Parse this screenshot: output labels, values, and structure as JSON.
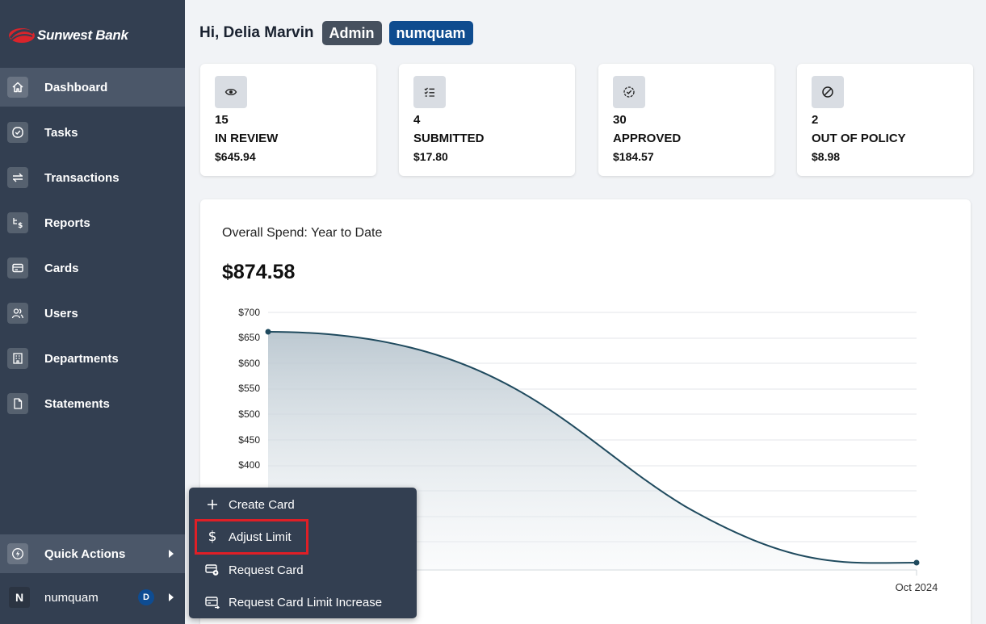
{
  "brand": {
    "name": "Sunwest Bank"
  },
  "sidebar": {
    "items": [
      {
        "label": "Dashboard",
        "icon": "home-icon",
        "active": true
      },
      {
        "label": "Tasks",
        "icon": "check-circle-icon"
      },
      {
        "label": "Transactions",
        "icon": "transfer-arrows-icon"
      },
      {
        "label": "Reports",
        "icon": "report-dollar-icon"
      },
      {
        "label": "Cards",
        "icon": "credit-card-icon"
      },
      {
        "label": "Users",
        "icon": "users-icon"
      },
      {
        "label": "Departments",
        "icon": "building-icon"
      },
      {
        "label": "Statements",
        "icon": "document-icon"
      }
    ],
    "quick_actions": {
      "label": "Quick Actions",
      "icon": "bolt-icon"
    },
    "user": {
      "initial": "N",
      "name": "numquam",
      "badge": "D"
    }
  },
  "header": {
    "greeting": "Hi, Delia Marvin",
    "role_tag": "Admin",
    "org_tag": "numquam"
  },
  "stats": [
    {
      "count": "15",
      "label": "IN REVIEW",
      "amount": "$645.94",
      "icon": "eye-icon"
    },
    {
      "count": "4",
      "label": "SUBMITTED",
      "amount": "$17.80",
      "icon": "checklist-icon"
    },
    {
      "count": "30",
      "label": "APPROVED",
      "amount": "$184.57",
      "icon": "badge-check-icon"
    },
    {
      "count": "2",
      "label": "OUT OF POLICY",
      "amount": "$8.98",
      "icon": "ban-icon"
    }
  ],
  "chart_card": {
    "title": "Overall Spend: Year to Date",
    "total": "$874.58"
  },
  "chart_data": {
    "type": "area",
    "title": "Overall Spend: Year to Date",
    "y_ticks": [
      "$700",
      "$650",
      "$600",
      "$550",
      "$500",
      "$450",
      "$400"
    ],
    "x_ticks": [
      "Oct 2024"
    ],
    "ylim": [
      200,
      700
    ],
    "line_color": "#1f4a5e",
    "grid": true
  },
  "popup": {
    "items": [
      {
        "label": "Create Card",
        "icon": "plus-icon"
      },
      {
        "label": "Adjust Limit",
        "icon": "dollar-icon"
      },
      {
        "label": "Request Card",
        "icon": "card-request-icon"
      },
      {
        "label": "Request Card Limit Increase",
        "icon": "card-limit-icon"
      }
    ]
  }
}
